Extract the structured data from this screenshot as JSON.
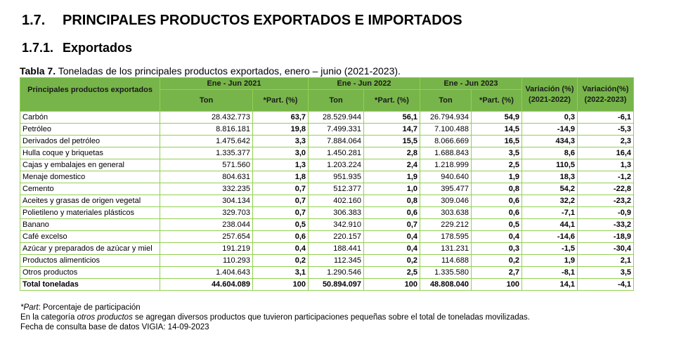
{
  "heading": {
    "number": "1.7.",
    "title": "PRINCIPALES PRODUCTOS EXPORTADOS E IMPORTADOS"
  },
  "subheading": {
    "number": "1.7.1.",
    "title": "Exportados"
  },
  "caption": {
    "label": "Tabla 7.",
    "text": " Toneladas de los principales productos exportados, enero – junio (2021-2023)."
  },
  "table": {
    "header": {
      "product": "Principales productos exportados",
      "periods": [
        "Ene - Jun 2021",
        "Ene - Jun 2022",
        "Ene -  Jun 2023"
      ],
      "ton": "Ton",
      "part": "*Part. (%)",
      "var1": [
        "Variación (%)",
        "(2021-2022)"
      ],
      "var2": [
        "Variación(%)",
        "(2022-2023)"
      ]
    },
    "rows": [
      [
        "Carbón",
        "28.432.773",
        "63,7",
        "28.529.944",
        "56,1",
        "26.794.934",
        "54,9",
        "0,3",
        "-6,1"
      ],
      [
        "Petróleo",
        "8.816.181",
        "19,8",
        "7.499.331",
        "14,7",
        "7.100.488",
        "14,5",
        "-14,9",
        "-5,3"
      ],
      [
        "Derivados del petróleo",
        "1.475.642",
        "3,3",
        "7.884.064",
        "15,5",
        "8.066.669",
        "16,5",
        "434,3",
        "2,3"
      ],
      [
        "Hulla coque y briquetas",
        "1.335.377",
        "3,0",
        "1.450.281",
        "2,8",
        "1.688.843",
        "3,5",
        "8,6",
        "16,4"
      ],
      [
        "Cajas y embalajes en general",
        "571.560",
        "1,3",
        "1.203.224",
        "2,4",
        "1.218.999",
        "2,5",
        "110,5",
        "1,3"
      ],
      [
        "Menaje domestico",
        "804.631",
        "1,8",
        "951.935",
        "1,9",
        "940.640",
        "1,9",
        "18,3",
        "-1,2"
      ],
      [
        "Cemento",
        "332.235",
        "0,7",
        "512.377",
        "1,0",
        "395.477",
        "0,8",
        "54,2",
        "-22,8"
      ],
      [
        "Aceites y grasas de origen vegetal",
        "304.134",
        "0,7",
        "402.160",
        "0,8",
        "309.046",
        "0,6",
        "32,2",
        "-23,2"
      ],
      [
        "Polietileno y materiales plásticos",
        "329.703",
        "0,7",
        "306.383",
        "0,6",
        "303.638",
        "0,6",
        "-7,1",
        "-0,9"
      ],
      [
        "Banano",
        "238.044",
        "0,5",
        "342.910",
        "0,7",
        "229.212",
        "0,5",
        "44,1",
        "-33,2"
      ],
      [
        "Café excelso",
        "257.654",
        "0,6",
        "220.157",
        "0,4",
        "178.595",
        "0,4",
        "-14,6",
        "-18,9"
      ],
      [
        "Azúcar y preparados de azúcar y miel",
        "191.219",
        "0,4",
        "188.441",
        "0,4",
        "131.231",
        "0,3",
        "-1,5",
        "-30,4"
      ],
      [
        "Productos alimenticios",
        "110.293",
        "0,2",
        "112.345",
        "0,2",
        "114.688",
        "0,2",
        "1,9",
        "2,1"
      ],
      [
        "Otros productos",
        "1.404.643",
        "3,1",
        "1.290.546",
        "2,5",
        "1.335.580",
        "2,7",
        "-8,1",
        "3,5"
      ]
    ],
    "total": [
      "Total toneladas",
      "44.604.089",
      "100",
      "50.894.097",
      "100",
      "48.808.040",
      "100",
      "14,1",
      "-4,1"
    ]
  },
  "notes": {
    "part_label": "*Part",
    "part_text": ": Porcentaje de participación",
    "otros_prefix": "En la categoría ",
    "otros_italic": "otros productos",
    "otros_suffix": " se agregan diversos productos que tuvieron participaciones pequeñas sobre el total de toneladas movilizadas.",
    "fecha": "Fecha de consulta base de datos VIGIA: 14-09-2023"
  }
}
